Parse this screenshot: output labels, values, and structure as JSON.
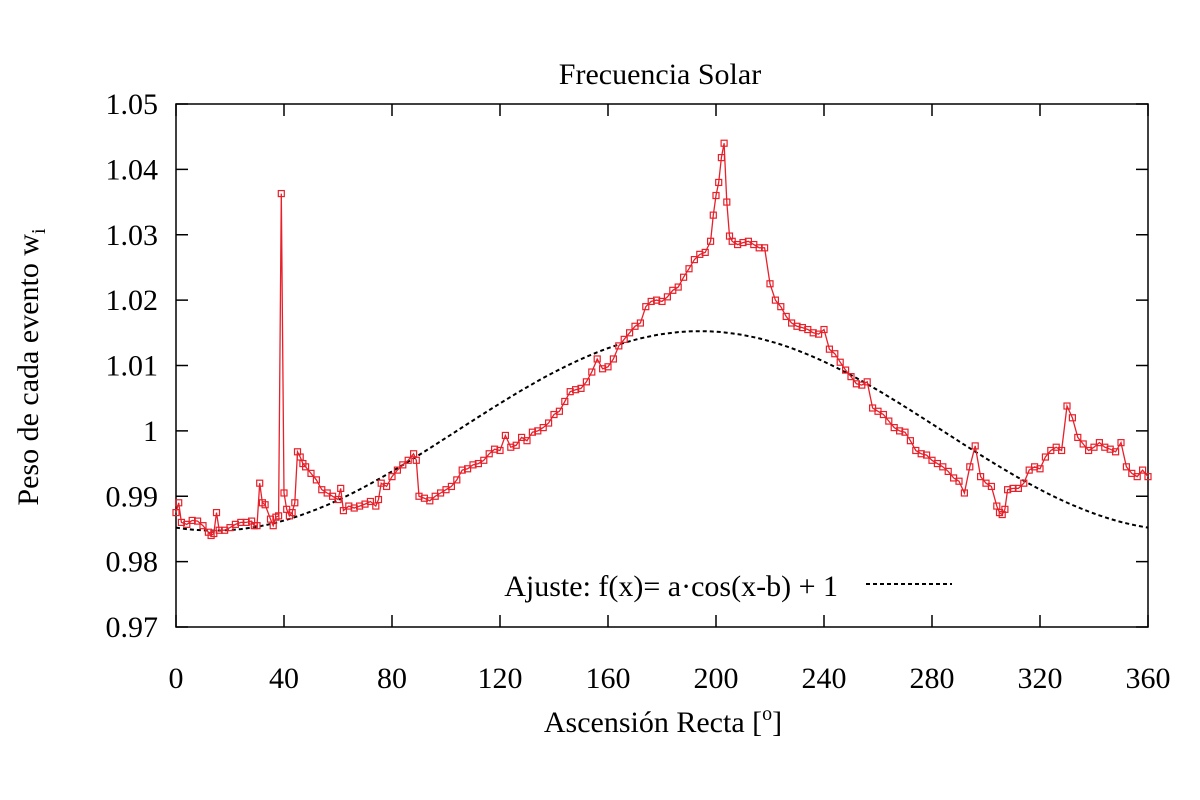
{
  "chart_data": {
    "type": "line",
    "title": "Frecuencia Solar",
    "xlabel": "Ascensión Recta [",
    "xlabel_sup": "o",
    "xlabel_end": "]",
    "ylabel": "Peso de cada evento w",
    "ylabel_sub": "i",
    "xlim": [
      0,
      360
    ],
    "ylim": [
      0.97,
      1.05
    ],
    "x_ticks": [
      0,
      40,
      80,
      120,
      160,
      200,
      240,
      280,
      320,
      360
    ],
    "y_ticks": [
      0.97,
      0.98,
      0.99,
      1.0,
      1.01,
      1.02,
      1.03,
      1.04,
      1.05
    ],
    "y_tick_labels": [
      "0.97",
      "0.98",
      "0.99",
      "1",
      "1.01",
      "1.02",
      "1.03",
      "1.04",
      "1.05"
    ],
    "grid": false,
    "legend_position": "bottom-right",
    "series": [
      {
        "name": "",
        "style": "line+open-squares",
        "color": "#e8202a",
        "points": [
          [
            0,
            0.9875
          ],
          [
            1,
            0.989
          ],
          [
            2,
            0.986
          ],
          [
            4,
            0.9857
          ],
          [
            6,
            0.9863
          ],
          [
            8,
            0.9862
          ],
          [
            10,
            0.9855
          ],
          [
            12,
            0.9845
          ],
          [
            13,
            0.984
          ],
          [
            14,
            0.9843
          ],
          [
            15,
            0.9875
          ],
          [
            16,
            0.9848
          ],
          [
            18,
            0.9848
          ],
          [
            20,
            0.9852
          ],
          [
            22,
            0.9857
          ],
          [
            24,
            0.986
          ],
          [
            26,
            0.986
          ],
          [
            28,
            0.9862
          ],
          [
            29,
            0.9855
          ],
          [
            30,
            0.9855
          ],
          [
            31,
            0.992
          ],
          [
            32,
            0.989
          ],
          [
            33,
            0.9887
          ],
          [
            35,
            0.9865
          ],
          [
            36,
            0.9855
          ],
          [
            37,
            0.9868
          ],
          [
            38,
            0.987
          ],
          [
            39,
            1.0363
          ],
          [
            40,
            0.9905
          ],
          [
            41,
            0.988
          ],
          [
            42,
            0.987
          ],
          [
            43,
            0.9875
          ],
          [
            44,
            0.989
          ],
          [
            45,
            0.9968
          ],
          [
            46,
            0.996
          ],
          [
            47,
            0.995
          ],
          [
            48,
            0.9945
          ],
          [
            50,
            0.9935
          ],
          [
            52,
            0.9925
          ],
          [
            54,
            0.991
          ],
          [
            56,
            0.9905
          ],
          [
            58,
            0.99
          ],
          [
            60,
            0.9895
          ],
          [
            61,
            0.9912
          ],
          [
            62,
            0.9878
          ],
          [
            64,
            0.9885
          ],
          [
            66,
            0.9882
          ],
          [
            68,
            0.9885
          ],
          [
            70,
            0.9888
          ],
          [
            72,
            0.9892
          ],
          [
            74,
            0.9885
          ],
          [
            75,
            0.9895
          ],
          [
            76,
            0.992
          ],
          [
            78,
            0.9915
          ],
          [
            80,
            0.993
          ],
          [
            82,
            0.994
          ],
          [
            84,
            0.9948
          ],
          [
            86,
            0.9955
          ],
          [
            88,
            0.9965
          ],
          [
            89,
            0.9955
          ],
          [
            90,
            0.99
          ],
          [
            92,
            0.9897
          ],
          [
            94,
            0.9893
          ],
          [
            96,
            0.99
          ],
          [
            98,
            0.9905
          ],
          [
            100,
            0.991
          ],
          [
            102,
            0.9915
          ],
          [
            104,
            0.9925
          ],
          [
            106,
            0.994
          ],
          [
            108,
            0.9942
          ],
          [
            110,
            0.9948
          ],
          [
            112,
            0.995
          ],
          [
            114,
            0.9955
          ],
          [
            116,
            0.9965
          ],
          [
            118,
            0.9972
          ],
          [
            120,
            0.997
          ],
          [
            122,
            0.9993
          ],
          [
            124,
            0.9975
          ],
          [
            126,
            0.9978
          ],
          [
            128,
            0.999
          ],
          [
            130,
            0.9985
          ],
          [
            132,
            0.9998
          ],
          [
            134,
            1.0
          ],
          [
            136,
            1.0005
          ],
          [
            138,
            1.0012
          ],
          [
            140,
            1.0025
          ],
          [
            142,
            1.003
          ],
          [
            144,
            1.0045
          ],
          [
            146,
            1.006
          ],
          [
            148,
            1.0063
          ],
          [
            150,
            1.0065
          ],
          [
            152,
            1.0075
          ],
          [
            154,
            1.009
          ],
          [
            156,
            1.011
          ],
          [
            158,
            1.0095
          ],
          [
            160,
            1.0098
          ],
          [
            162,
            1.011
          ],
          [
            164,
            1.013
          ],
          [
            166,
            1.014
          ],
          [
            168,
            1.015
          ],
          [
            170,
            1.016
          ],
          [
            172,
            1.0165
          ],
          [
            174,
            1.019
          ],
          [
            176,
            1.0198
          ],
          [
            178,
            1.02
          ],
          [
            180,
            1.0198
          ],
          [
            182,
            1.0205
          ],
          [
            184,
            1.0215
          ],
          [
            186,
            1.022
          ],
          [
            188,
            1.0235
          ],
          [
            190,
            1.0248
          ],
          [
            192,
            1.0262
          ],
          [
            194,
            1.027
          ],
          [
            196,
            1.0273
          ],
          [
            198,
            1.029
          ],
          [
            199,
            1.033
          ],
          [
            200,
            1.036
          ],
          [
            201,
            1.038
          ],
          [
            202,
            1.0418
          ],
          [
            203,
            1.044
          ],
          [
            204,
            1.035
          ],
          [
            205,
            1.0298
          ],
          [
            206,
            1.029
          ],
          [
            208,
            1.0285
          ],
          [
            210,
            1.0288
          ],
          [
            212,
            1.029
          ],
          [
            214,
            1.0285
          ],
          [
            216,
            1.028
          ],
          [
            218,
            1.028
          ],
          [
            220,
            1.0225
          ],
          [
            222,
            1.02
          ],
          [
            224,
            1.019
          ],
          [
            226,
            1.0175
          ],
          [
            228,
            1.0165
          ],
          [
            230,
            1.016
          ],
          [
            232,
            1.0158
          ],
          [
            234,
            1.0155
          ],
          [
            236,
            1.015
          ],
          [
            238,
            1.0148
          ],
          [
            240,
            1.0155
          ],
          [
            242,
            1.0125
          ],
          [
            244,
            1.0118
          ],
          [
            246,
            1.0105
          ],
          [
            248,
            1.0093
          ],
          [
            250,
            1.0083
          ],
          [
            252,
            1.0072
          ],
          [
            254,
            1.007
          ],
          [
            256,
            1.0075
          ],
          [
            258,
            1.0035
          ],
          [
            260,
            1.003
          ],
          [
            262,
            1.0025
          ],
          [
            264,
            1.0015
          ],
          [
            266,
            1.0005
          ],
          [
            268,
            1.0
          ],
          [
            270,
            0.9998
          ],
          [
            272,
            0.9985
          ],
          [
            274,
            0.997
          ],
          [
            276,
            0.9965
          ],
          [
            278,
            0.9963
          ],
          [
            280,
            0.9955
          ],
          [
            282,
            0.995
          ],
          [
            284,
            0.9945
          ],
          [
            286,
            0.9938
          ],
          [
            288,
            0.9928
          ],
          [
            290,
            0.9923
          ],
          [
            292,
            0.9905
          ],
          [
            294,
            0.9945
          ],
          [
            296,
            0.9977
          ],
          [
            298,
            0.993
          ],
          [
            300,
            0.992
          ],
          [
            302,
            0.9915
          ],
          [
            304,
            0.9885
          ],
          [
            305,
            0.9875
          ],
          [
            306,
            0.9872
          ],
          [
            307,
            0.988
          ],
          [
            308,
            0.991
          ],
          [
            310,
            0.9912
          ],
          [
            312,
            0.9912
          ],
          [
            314,
            0.992
          ],
          [
            316,
            0.994
          ],
          [
            318,
            0.9945
          ],
          [
            320,
            0.9942
          ],
          [
            322,
            0.996
          ],
          [
            324,
            0.997
          ],
          [
            326,
            0.9975
          ],
          [
            328,
            0.997
          ],
          [
            330,
            1.0038
          ],
          [
            332,
            1.002
          ],
          [
            334,
            0.999
          ],
          [
            336,
            0.998
          ],
          [
            338,
            0.997
          ],
          [
            340,
            0.9975
          ],
          [
            342,
            0.9982
          ],
          [
            344,
            0.9975
          ],
          [
            346,
            0.9972
          ],
          [
            348,
            0.9968
          ],
          [
            350,
            0.9982
          ],
          [
            352,
            0.9945
          ],
          [
            354,
            0.9935
          ],
          [
            356,
            0.993
          ],
          [
            358,
            0.994
          ],
          [
            360,
            0.993
          ]
        ]
      },
      {
        "name": "Ajuste: f(x)= a·cos(x-b) + 1",
        "style": "dashed",
        "color": "#000000",
        "function": {
          "a": 0.01525,
          "b": 194
        }
      }
    ]
  }
}
